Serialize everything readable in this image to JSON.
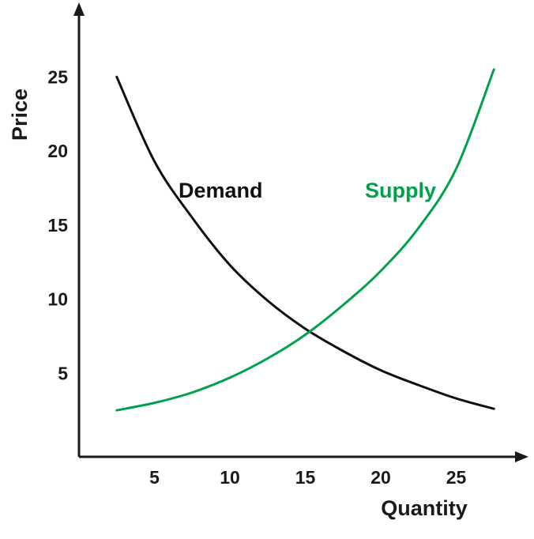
{
  "chart_data": {
    "type": "line",
    "title": "",
    "xlabel": "Quantity",
    "ylabel": "Price",
    "x_ticks": [
      5,
      10,
      15,
      20,
      25
    ],
    "y_ticks": [
      5,
      10,
      15,
      20,
      25
    ],
    "xlim": [
      0,
      29.5
    ],
    "ylim": [
      0,
      30
    ],
    "grid": false,
    "legend_position": "inline-curve-labels",
    "series": [
      {
        "name": "Demand",
        "color": "#111111",
        "points": [
          [
            2.5,
            25
          ],
          [
            5,
            19.3
          ],
          [
            7.5,
            15.5
          ],
          [
            10,
            12.3
          ],
          [
            12.5,
            9.9
          ],
          [
            15,
            8.0
          ],
          [
            17.5,
            6.5
          ],
          [
            20,
            5.2
          ],
          [
            22.5,
            4.2
          ],
          [
            25,
            3.3
          ],
          [
            27.5,
            2.6
          ]
        ]
      },
      {
        "name": "Supply",
        "color": "#00a14b",
        "points": [
          [
            2.5,
            2.5
          ],
          [
            5,
            3.0
          ],
          [
            7.5,
            3.7
          ],
          [
            10,
            4.7
          ],
          [
            12.5,
            6.0
          ],
          [
            15,
            7.6
          ],
          [
            17.5,
            9.6
          ],
          [
            20,
            11.9
          ],
          [
            22.5,
            14.8
          ],
          [
            25,
            18.8
          ],
          [
            27.5,
            25.5
          ]
        ]
      }
    ]
  }
}
